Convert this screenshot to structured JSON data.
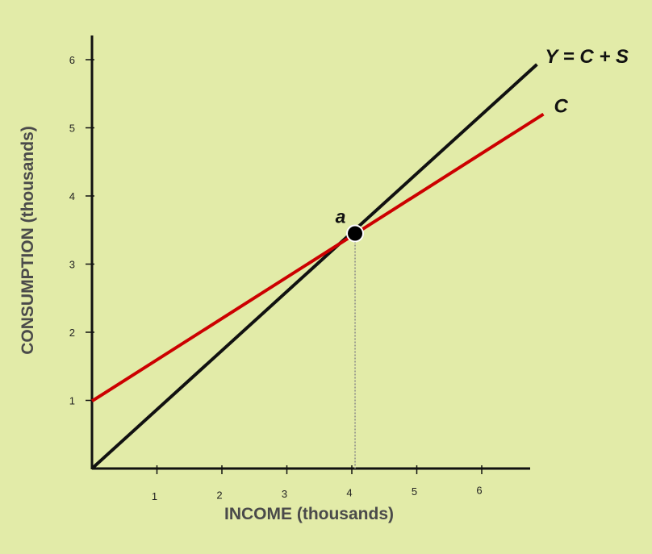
{
  "chart_data": {
    "type": "line",
    "xlabel": "INCOME (thousands)",
    "ylabel": "CONSUMPTION (thousands)",
    "xlim": [
      0,
      6.85
    ],
    "ylim": [
      0,
      6.3
    ],
    "x_ticks": [
      "1",
      "2",
      "3",
      "4",
      "5",
      "6"
    ],
    "y_ticks": [
      "1",
      "2",
      "3",
      "4",
      "5",
      "6"
    ],
    "grid": false,
    "series": [
      {
        "name": "Y = C + S",
        "x": [
          0,
          6.85
        ],
        "y": [
          0,
          5.93
        ],
        "color": "#111111"
      },
      {
        "name": "C",
        "x": [
          0,
          6.95
        ],
        "y": [
          0.99,
          5.2
        ],
        "color": "#cc0000"
      }
    ],
    "annotations": [
      {
        "label": "a",
        "x": 4.05,
        "y": 3.45,
        "dropline_to_x_axis": true
      }
    ]
  }
}
